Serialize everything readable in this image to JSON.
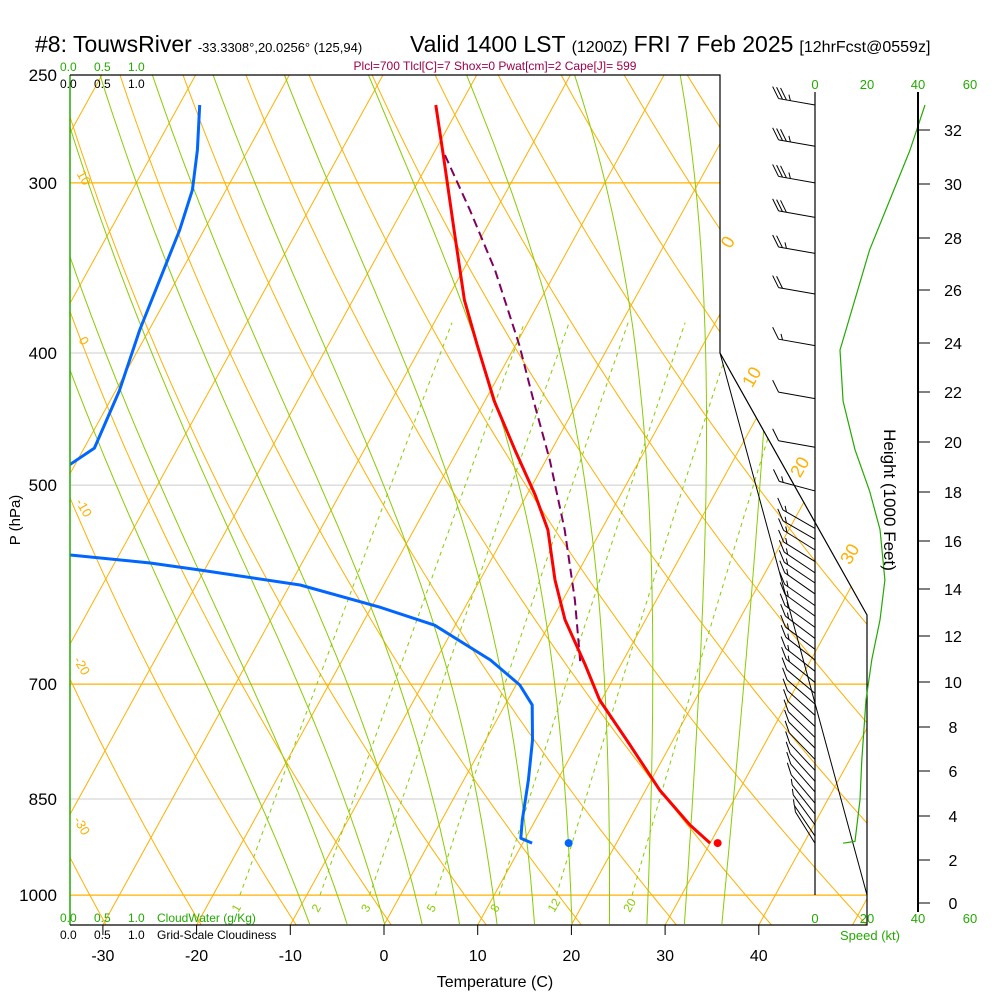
{
  "header": {
    "station": "#8: TouwsRiver",
    "coords": "-33.3308°,20.0256° (125,94)",
    "valid": "Valid 1400 LST",
    "utc": "(1200Z)",
    "date": "FRI 7 Feb 2025",
    "forecast": "[12hrFcst@0559z]",
    "indices": "Plcl=700 Tlcl[C]=7 Shox=0 Pwat[cm]=2 Cape[J]= 599"
  },
  "cloud_scale": {
    "ticks": [
      "0.0",
      "0.5",
      "1.0"
    ],
    "cloudwater_label": "CloudWater (g/Kg)",
    "cloudiness_label": "Grid-Scale Cloudiness"
  },
  "speed_axis": {
    "ticks": [
      "0",
      "20",
      "40",
      "60"
    ],
    "label": "Speed (kt)"
  },
  "colors": {
    "temperature": "#ff0000",
    "dewpoint": "#0066ff",
    "parcel": "#800060",
    "isotherm": "#ffb000",
    "moist": "#88cc00",
    "speed": "#22aa00",
    "indices": "#a0004a"
  },
  "chart_data": {
    "type": "skew-t",
    "title": "#8: TouwsRiver Valid 1400 LST (1200Z) FRI 7 Feb 2025",
    "xlabel": "Temperature (C)",
    "ylabel": "P (hPa)",
    "y2label": "Height (1000 Feet)",
    "xlim": [
      -33,
      46
    ],
    "ylim": [
      1000,
      250
    ],
    "x_ticks": [
      "-30",
      "-20",
      "-10",
      "0",
      "10",
      "20",
      "30",
      "40"
    ],
    "x_tick_values": [
      -30,
      -20,
      -10,
      0,
      10,
      20,
      30,
      40
    ],
    "p_ticks": [
      "250",
      "300",
      "400",
      "500",
      "700",
      "850",
      "1000"
    ],
    "p_tick_values": [
      250,
      300,
      400,
      500,
      700,
      850,
      1000
    ],
    "height_ticks": [
      "0",
      "2",
      "4",
      "6",
      "8",
      "10",
      "12",
      "14",
      "16",
      "18",
      "20",
      "22",
      "24",
      "26",
      "28",
      "30",
      "32"
    ],
    "isotherm_labels_left": [
      "10",
      "0",
      "-10",
      "-20",
      "-30"
    ],
    "dry_adiabat_labels_right": [
      "0",
      "10",
      "20",
      "30"
    ],
    "mixing_ratio_labels": [
      "1",
      "2",
      "3",
      "5",
      "8",
      "12",
      "20"
    ],
    "mixing_ratio_values": [
      1,
      2,
      3,
      5,
      8,
      12,
      20
    ],
    "temperature": [
      [
        263,
        -42.6
      ],
      [
        288.6,
        -38.5
      ],
      [
        325,
        -33.3
      ],
      [
        365.7,
        -28.1
      ],
      [
        394.6,
        -24.1
      ],
      [
        433.7,
        -19.0
      ],
      [
        471.3,
        -13.9
      ],
      [
        508.5,
        -9.1
      ],
      [
        539.4,
        -5.7
      ],
      [
        587,
        -2.0
      ],
      [
        627.9,
        1.4
      ],
      [
        677.5,
        6.2
      ],
      [
        719,
        9.8
      ],
      [
        776,
        15.7
      ],
      [
        837.3,
        21.5
      ],
      [
        888.3,
        26.8
      ],
      [
        915.8,
        30.0
      ]
    ],
    "dewpoint_upper": [
      [
        263,
        -67.8
      ],
      [
        283.8,
        -65.4
      ],
      [
        303.6,
        -63.6
      ],
      [
        325,
        -62.6
      ],
      [
        353.5,
        -61.8
      ],
      [
        384.7,
        -61.0
      ],
      [
        426.4,
        -59.6
      ],
      [
        469.7,
        -58.9
      ],
      [
        483.4,
        -60.6
      ]
    ],
    "dewpoint_lower": [
      [
        562.7,
        -55.2
      ],
      [
        570.4,
        -46.2
      ],
      [
        577.2,
        -40.5
      ],
      [
        592,
        -28.9
      ],
      [
        614.6,
        -19.1
      ],
      [
        633.6,
        -12.2
      ],
      [
        672,
        -4.2
      ],
      [
        701,
        0.4
      ],
      [
        725,
        2.9
      ],
      [
        769.5,
        5.0
      ],
      [
        823.2,
        6.9
      ],
      [
        880.9,
        8.6
      ],
      [
        908.2,
        9.5
      ],
      [
        915.8,
        11.0
      ]
    ],
    "parcel": [
      [
        286.2,
        -38.7
      ],
      [
        314.1,
        -32.8
      ],
      [
        347.6,
        -26.6
      ],
      [
        394.6,
        -19.6
      ],
      [
        433.7,
        -14.8
      ],
      [
        479.3,
        -9.6
      ],
      [
        539.4,
        -3.9
      ],
      [
        607.3,
        1.3
      ],
      [
        677.5,
        5.7
      ]
    ],
    "surface_temperature": {
      "p": 915.8,
      "t": 30.8
    },
    "surface_dewpoint": {
      "p": 915.8,
      "t": 14.9
    },
    "wind_speed_profile": [
      [
        916,
        10.8
      ],
      [
        913,
        15.4
      ],
      [
        851,
        17.3
      ],
      [
        796,
        18
      ],
      [
        719,
        19.6
      ],
      [
        671,
        21.9
      ],
      [
        628,
        25
      ],
      [
        587,
        26.9
      ],
      [
        539,
        25
      ],
      [
        505,
        21
      ],
      [
        471,
        15.4
      ],
      [
        434,
        10.8
      ],
      [
        398,
        9.6
      ],
      [
        336,
        21
      ],
      [
        284,
        36.5
      ],
      [
        263,
        42.3
      ]
    ],
    "wind_barbs": [
      [
        263,
        280,
        35
      ],
      [
        282,
        280,
        35
      ],
      [
        300,
        280,
        35
      ],
      [
        318,
        280,
        30
      ],
      [
        338,
        280,
        25
      ],
      [
        362,
        280,
        20
      ],
      [
        395,
        280,
        15
      ],
      [
        432,
        280,
        10
      ],
      [
        469,
        280,
        10
      ],
      [
        505,
        285,
        15
      ],
      [
        538,
        300,
        15
      ],
      [
        548,
        300,
        15
      ],
      [
        558,
        302,
        15
      ],
      [
        569,
        302,
        15
      ],
      [
        580,
        304,
        15
      ],
      [
        590,
        304,
        15
      ],
      [
        601,
        305,
        15
      ],
      [
        613,
        305,
        15
      ],
      [
        624,
        306,
        15
      ],
      [
        636,
        306,
        15
      ],
      [
        648,
        307,
        15
      ],
      [
        660,
        307,
        15
      ],
      [
        672,
        308,
        15
      ],
      [
        685,
        308,
        15
      ],
      [
        698,
        309,
        15
      ],
      [
        711,
        310,
        10
      ],
      [
        724,
        311,
        10
      ],
      [
        738,
        312,
        10
      ],
      [
        752,
        313,
        10
      ],
      [
        766,
        314,
        10
      ],
      [
        780,
        315,
        10
      ],
      [
        795,
        316,
        10
      ],
      [
        810,
        317,
        10
      ],
      [
        825,
        318,
        10
      ],
      [
        840,
        319,
        10
      ],
      [
        856,
        320,
        10
      ],
      [
        872,
        322,
        5
      ],
      [
        888,
        324,
        5
      ],
      [
        905,
        326,
        5
      ],
      [
        916,
        328,
        5
      ]
    ]
  }
}
